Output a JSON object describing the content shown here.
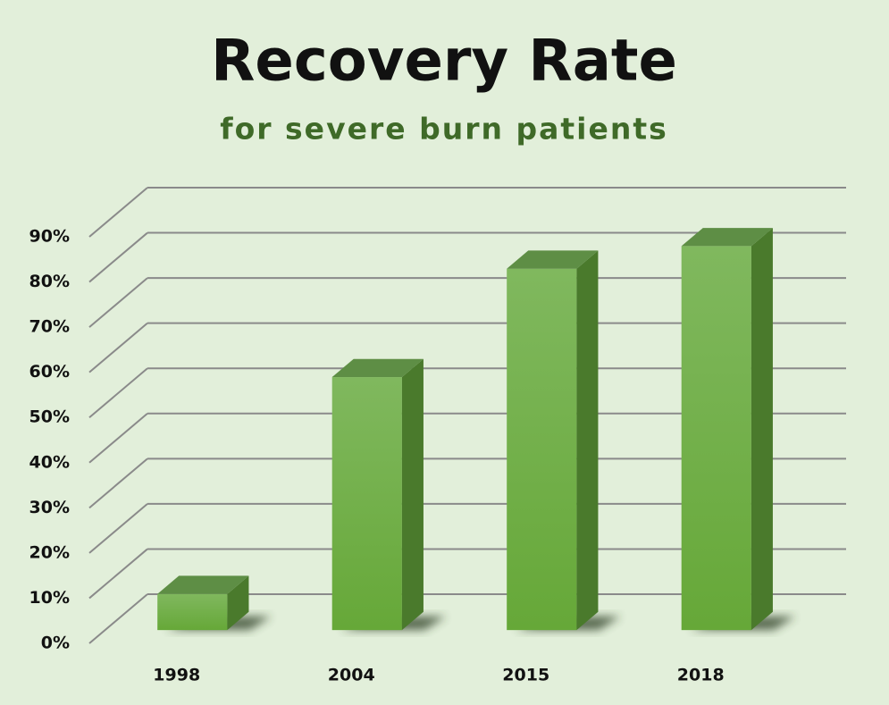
{
  "chart_data": {
    "type": "bar3d",
    "title": "Recovery Rate",
    "subtitle": "for severe burn patients",
    "categories": [
      "1998",
      "2004",
      "2015",
      "2018"
    ],
    "values": [
      8,
      56,
      80,
      85
    ],
    "color": "#6fae42",
    "ylim": [
      0,
      90
    ],
    "yticks": [
      {
        "value": 0,
        "label": "0%"
      },
      {
        "value": 10,
        "label": "10%"
      },
      {
        "value": 20,
        "label": "20%"
      },
      {
        "value": 30,
        "label": "30%"
      },
      {
        "value": 40,
        "label": "40%"
      },
      {
        "value": 50,
        "label": "50%"
      },
      {
        "value": 60,
        "label": "60%"
      },
      {
        "value": 70,
        "label": "70%"
      },
      {
        "value": 80,
        "label": "80%"
      },
      {
        "value": 90,
        "label": "90%"
      }
    ],
    "grid": true
  }
}
